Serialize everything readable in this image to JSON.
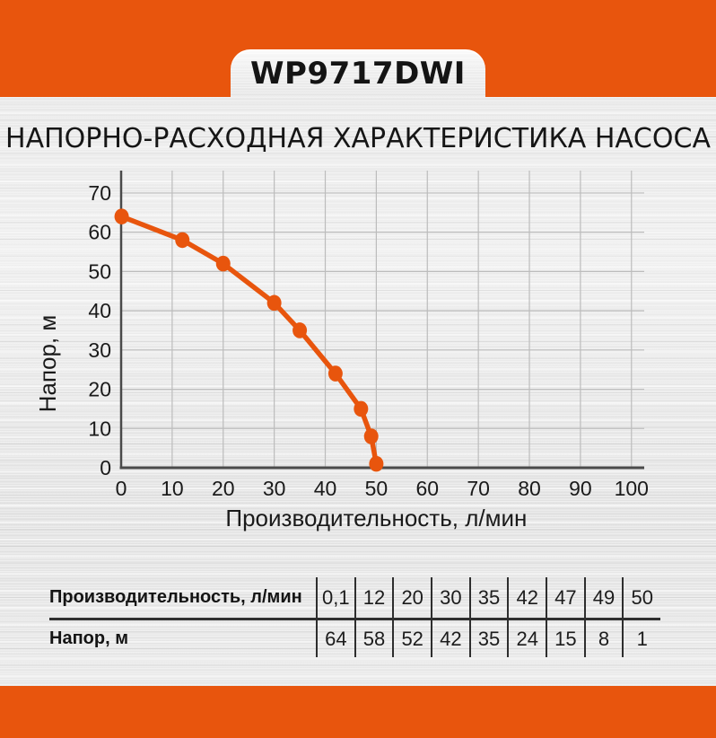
{
  "colors": {
    "orange": "#E8550D",
    "axis": "#4a4a4a",
    "grid": "#bcbcbc",
    "text": "#1a1a1a",
    "table_line": "#2e2e2e"
  },
  "banner": {
    "model_label": "WP9717DWI"
  },
  "heading": {
    "title": "НАПОРНО-РАСХОДНАЯ ХАРАКТЕРИСТИКА НАСОСА"
  },
  "chart_data": {
    "type": "line",
    "title": "",
    "xlabel": "Производительность, л/мин",
    "ylabel": "Напор, м",
    "x": [
      0.1,
      12,
      20,
      30,
      35,
      42,
      47,
      49,
      50
    ],
    "y": [
      64,
      58,
      52,
      42,
      35,
      24,
      15,
      8,
      1
    ],
    "xticks": [
      0,
      10,
      20,
      30,
      40,
      50,
      60,
      70,
      80,
      90,
      100
    ],
    "yticks": [
      0,
      10,
      20,
      30,
      40,
      50,
      60,
      70
    ],
    "xlim": [
      0,
      102.5
    ],
    "ylim": [
      0,
      75.7
    ],
    "grid": true,
    "legend": false,
    "marker": "dot",
    "series_color": "#E8550D"
  },
  "table": {
    "rows": [
      {
        "label": "Производительность, л/мин",
        "values": [
          "0,1",
          "12",
          "20",
          "30",
          "35",
          "42",
          "47",
          "49",
          "50"
        ]
      },
      {
        "label": "Напор, м",
        "values": [
          "64",
          "58",
          "52",
          "42",
          "35",
          "24",
          "15",
          "8",
          "1"
        ]
      }
    ]
  }
}
